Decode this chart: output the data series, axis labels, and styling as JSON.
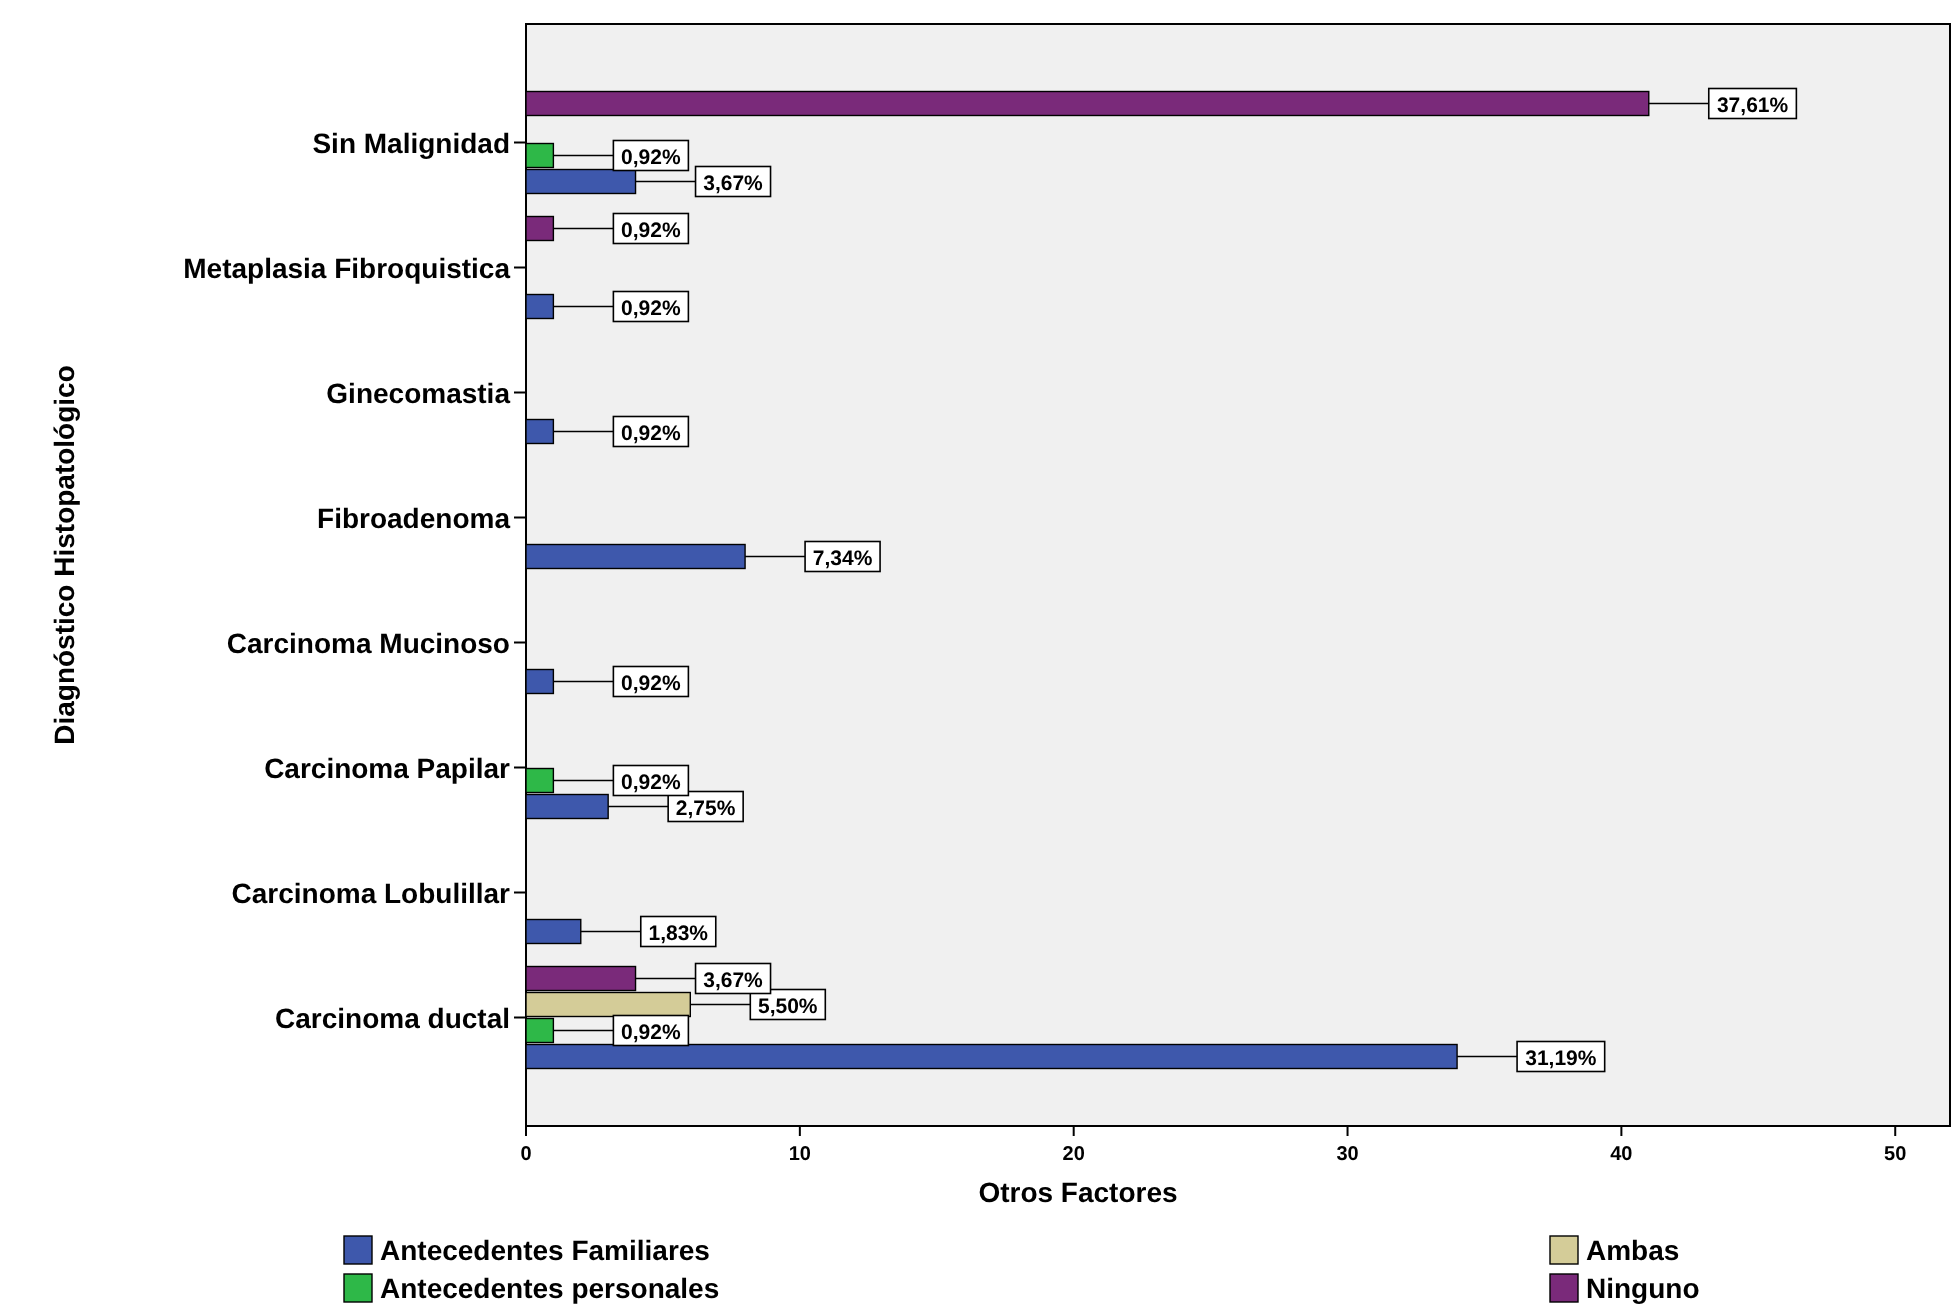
{
  "chart_data": {
    "type": "bar",
    "orientation": "horizontal",
    "xlabel": "Otros Factores",
    "ylabel": "Diagnóstico Histopatológico",
    "categories": [
      "Sin Malignidad",
      "Metaplasia Fibroquistica",
      "Ginecomastia",
      "Fibroadenoma",
      "Carcinoma Mucinoso",
      "Carcinoma Papilar",
      "Carcinoma Lobulillar",
      "Carcinoma ductal"
    ],
    "series": [
      {
        "name": "Antecedentes Familiares",
        "color": "#3e58ac",
        "values": [
          4,
          1,
          1,
          8,
          1,
          3,
          2,
          34
        ]
      },
      {
        "name": "Antecedentes personales",
        "color": "#2eb848",
        "values": [
          1,
          null,
          null,
          null,
          null,
          1,
          null,
          1
        ]
      },
      {
        "name": "Ambas",
        "color": "#d4cc98",
        "values": [
          null,
          null,
          null,
          null,
          null,
          null,
          null,
          6
        ]
      },
      {
        "name": "Ninguno",
        "color": "#7a2a7a",
        "values": [
          41,
          1,
          null,
          null,
          null,
          null,
          null,
          4
        ]
      }
    ],
    "annotations": [
      "3,67%",
      "0,92%",
      "0,92%",
      "7,34%",
      "0,92%",
      "2,75%",
      "1,83%",
      "31,19%",
      "0,92%",
      "0,92%",
      "0,92%",
      "5,50%",
      "37,61%",
      "0,92%",
      "3,67%"
    ],
    "xlim": [
      0,
      52
    ],
    "xticks": [
      0,
      10,
      20,
      30,
      40,
      50
    ],
    "grid": false,
    "legend": "bottom"
  }
}
